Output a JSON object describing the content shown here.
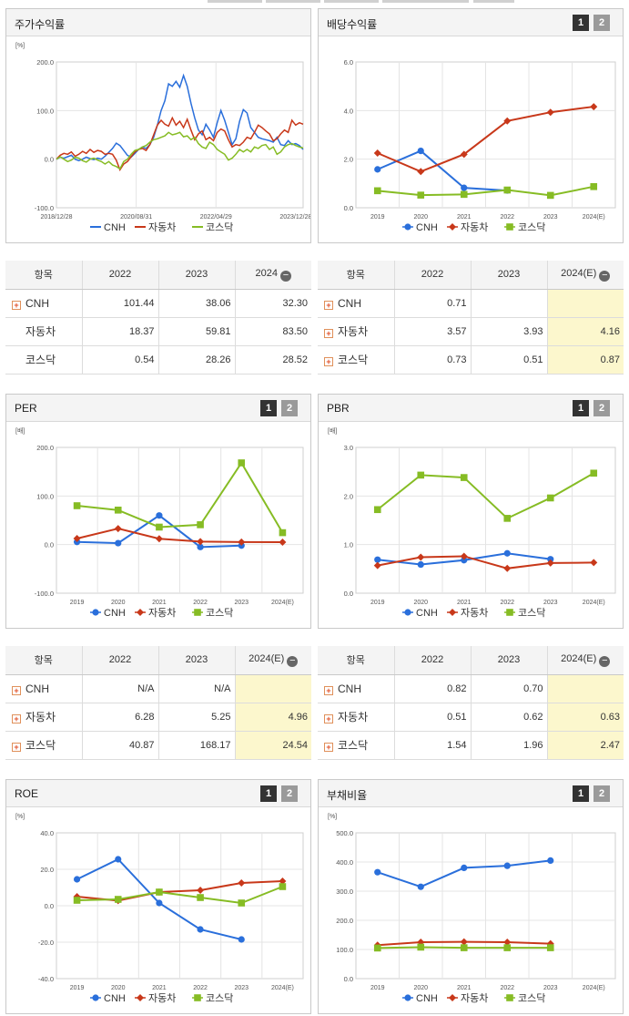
{
  "legend": [
    "CNH",
    "자동차",
    "코스닥"
  ],
  "colors": {
    "CNH": "#2a6fdb",
    "자동차": "#c8381a",
    "코스닥": "#86bc24"
  },
  "pager": {
    "one": "1",
    "two": "2"
  },
  "charts": {
    "stock": {
      "title": "주가수익률",
      "unit": "[%]",
      "type": "line",
      "y_ticks": [
        "200.0",
        "100.0",
        "0.0",
        "-100.0"
      ],
      "ylim": [
        -100,
        200
      ],
      "x_ticks": [
        "2018/12/28",
        "2020/08/31",
        "2022/04/29",
        "2023/12/28"
      ],
      "series": [
        {
          "name": "CNH",
          "values": [
            0,
            4,
            2,
            5,
            8,
            0,
            -3,
            0,
            4,
            1,
            -1,
            2,
            0,
            6,
            14,
            22,
            33,
            28,
            18,
            8,
            4,
            12,
            20,
            25,
            22,
            30,
            45,
            70,
            100,
            120,
            155,
            150,
            160,
            148,
            172,
            150,
            115,
            85,
            60,
            50,
            72,
            60,
            45,
            75,
            100,
            80,
            55,
            30,
            42,
            78,
            102,
            95,
            65,
            55,
            45,
            42,
            40,
            38,
            35,
            45,
            30,
            28,
            38,
            30,
            32,
            28,
            20
          ]
        },
        {
          "name": "자동차",
          "values": [
            0,
            8,
            12,
            10,
            15,
            6,
            10,
            16,
            12,
            20,
            14,
            18,
            16,
            10,
            12,
            10,
            -2,
            -22,
            -10,
            -5,
            5,
            15,
            20,
            22,
            18,
            30,
            50,
            70,
            80,
            72,
            68,
            85,
            70,
            78,
            65,
            82,
            60,
            40,
            52,
            58,
            40,
            45,
            38,
            55,
            62,
            58,
            40,
            25,
            30,
            28,
            35,
            45,
            42,
            55,
            70,
            65,
            58,
            52,
            38,
            42,
            52,
            60,
            55,
            80,
            70,
            75,
            72
          ]
        },
        {
          "name": "코스닥",
          "values": [
            0,
            5,
            0,
            -5,
            -2,
            4,
            2,
            -3,
            -6,
            0,
            2,
            -2,
            -5,
            -10,
            -5,
            -12,
            -15,
            -20,
            -5,
            0,
            10,
            18,
            20,
            25,
            28,
            35,
            40,
            42,
            45,
            48,
            55,
            50,
            52,
            55,
            46,
            48,
            40,
            45,
            32,
            25,
            22,
            35,
            30,
            20,
            15,
            10,
            -2,
            2,
            10,
            20,
            15,
            20,
            15,
            25,
            22,
            28,
            30,
            20,
            25,
            10,
            15,
            25,
            30,
            32,
            28,
            25,
            23
          ]
        }
      ]
    },
    "dividend": {
      "title": "배당수익률",
      "unit": "",
      "type": "line",
      "y_ticks": [
        "6.0",
        "4.0",
        "2.0",
        "0.0"
      ],
      "ylim": [
        0,
        6
      ],
      "x_ticks": [
        "2019",
        "2020",
        "2021",
        "2022",
        "2023",
        "2024(E)"
      ],
      "series": [
        {
          "name": "CNH",
          "values": [
            1.58,
            2.34,
            0.82,
            0.71,
            null,
            null
          ]
        },
        {
          "name": "자동차",
          "values": [
            2.25,
            1.49,
            2.2,
            3.57,
            3.93,
            4.16
          ]
        },
        {
          "name": "코스닥",
          "values": [
            0.7,
            0.52,
            0.55,
            0.73,
            0.51,
            0.87
          ]
        }
      ]
    },
    "per": {
      "title": "PER",
      "unit": "[배]",
      "type": "line",
      "y_ticks": [
        "200.0",
        "100.0",
        "0.0",
        "-100.0"
      ],
      "ylim": [
        -100,
        200
      ],
      "x_ticks": [
        "2019",
        "2020",
        "2021",
        "2022",
        "2023",
        "2024(E)"
      ],
      "series": [
        {
          "name": "CNH",
          "values": [
            5.5,
            3.0,
            60.0,
            -5.0,
            -2.0,
            null
          ]
        },
        {
          "name": "자동차",
          "values": [
            12.5,
            33.0,
            12.0,
            6.28,
            5.25,
            4.96
          ]
        },
        {
          "name": "코스닥",
          "values": [
            80.0,
            71.0,
            36.0,
            40.87,
            168.17,
            24.54
          ]
        }
      ]
    },
    "pbr": {
      "title": "PBR",
      "unit": "[배]",
      "type": "line",
      "y_ticks": [
        "3.0",
        "2.0",
        "1.0",
        "0.0"
      ],
      "ylim": [
        0,
        3
      ],
      "x_ticks": [
        "2019",
        "2020",
        "2021",
        "2022",
        "2023",
        "2024(E)"
      ],
      "series": [
        {
          "name": "CNH",
          "values": [
            0.69,
            0.59,
            0.68,
            0.82,
            0.7,
            null
          ]
        },
        {
          "name": "자동차",
          "values": [
            0.57,
            0.74,
            0.76,
            0.51,
            0.62,
            0.63
          ]
        },
        {
          "name": "코스닥",
          "values": [
            1.72,
            2.43,
            2.38,
            1.54,
            1.96,
            2.47
          ]
        }
      ]
    },
    "roe": {
      "title": "ROE",
      "unit": "[%]",
      "type": "line",
      "y_ticks": [
        "40.0",
        "20.0",
        "0.0",
        "-20.0",
        "-40.0"
      ],
      "ylim": [
        -40,
        40
      ],
      "x_ticks": [
        "2019",
        "2020",
        "2021",
        "2022",
        "2023",
        "2024(E)"
      ],
      "series": [
        {
          "name": "CNH",
          "values": [
            14.5,
            25.5,
            1.5,
            -13.0,
            -18.5,
            null
          ]
        },
        {
          "name": "자동차",
          "values": [
            5.0,
            2.8,
            7.5,
            8.5,
            12.5,
            13.5
          ]
        },
        {
          "name": "코스닥",
          "values": [
            3.0,
            3.5,
            7.5,
            4.5,
            1.5,
            10.5
          ]
        }
      ]
    },
    "debt": {
      "title": "부채비율",
      "unit": "[%]",
      "type": "line",
      "y_ticks": [
        "500.0",
        "400.0",
        "300.0",
        "200.0",
        "100.0",
        "0.0"
      ],
      "ylim": [
        0,
        500
      ],
      "x_ticks": [
        "2019",
        "2020",
        "2021",
        "2022",
        "2023",
        "2024(E)"
      ],
      "series": [
        {
          "name": "CNH",
          "values": [
            365,
            315,
            380,
            387,
            405,
            null
          ]
        },
        {
          "name": "자동차",
          "values": [
            115,
            125,
            126,
            125,
            120,
            null
          ]
        },
        {
          "name": "코스닥",
          "values": [
            105,
            108,
            106,
            106,
            106,
            null
          ]
        }
      ]
    }
  },
  "tables": {
    "stock": {
      "headers": [
        "항목",
        "2022",
        "2023",
        "2024"
      ],
      "rows": [
        {
          "name": "CNH",
          "plus": true,
          "values": [
            "101.44",
            "38.06",
            "32.30"
          ]
        },
        {
          "name": "자동차",
          "plus": false,
          "values": [
            "18.37",
            "59.81",
            "83.50"
          ]
        },
        {
          "name": "코스닥",
          "plus": false,
          "values": [
            "0.54",
            "28.26",
            "28.52"
          ]
        }
      ]
    },
    "dividend": {
      "headers": [
        "항목",
        "2022",
        "2023",
        "2024(E)"
      ],
      "rows": [
        {
          "name": "CNH",
          "plus": true,
          "values": [
            "0.71",
            "",
            ""
          ]
        },
        {
          "name": "자동차",
          "plus": true,
          "values": [
            "3.57",
            "3.93",
            "4.16"
          ]
        },
        {
          "name": "코스닥",
          "plus": true,
          "values": [
            "0.73",
            "0.51",
            "0.87"
          ]
        }
      ]
    },
    "per": {
      "headers": [
        "항목",
        "2022",
        "2023",
        "2024(E)"
      ],
      "rows": [
        {
          "name": "CNH",
          "plus": true,
          "values": [
            "N/A",
            "N/A",
            ""
          ]
        },
        {
          "name": "자동차",
          "plus": true,
          "values": [
            "6.28",
            "5.25",
            "4.96"
          ]
        },
        {
          "name": "코스닥",
          "plus": true,
          "values": [
            "40.87",
            "168.17",
            "24.54"
          ]
        }
      ]
    },
    "pbr": {
      "headers": [
        "항목",
        "2022",
        "2023",
        "2024(E)"
      ],
      "rows": [
        {
          "name": "CNH",
          "plus": true,
          "values": [
            "0.82",
            "0.70",
            ""
          ]
        },
        {
          "name": "자동차",
          "plus": true,
          "values": [
            "0.51",
            "0.62",
            "0.63"
          ]
        },
        {
          "name": "코스닥",
          "plus": true,
          "values": [
            "1.54",
            "1.96",
            "2.47"
          ]
        }
      ]
    }
  }
}
